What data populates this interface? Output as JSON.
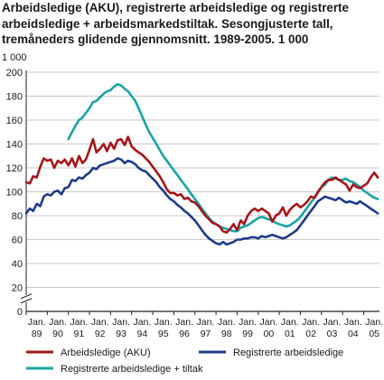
{
  "chart_data": {
    "type": "line",
    "title": "Arbeidsledige (AKU), registrerte arbeidsledige og registrerte arbeidsledige + arbeidsmarkedstiltak. Sesongjusterte tall, tremåneders glidende gjennomsnitt. 1989-2005. 1 000",
    "ylabel": "1 000",
    "xlabel": "",
    "ylim": [
      0,
      200
    ],
    "yticks": [
      0,
      20,
      40,
      60,
      80,
      100,
      120,
      140,
      160,
      180,
      200
    ],
    "y_axis_break": true,
    "grid": true,
    "legend_position": "bottom",
    "xlim": [
      1989.0,
      2005.75
    ],
    "x_tick_labels": [
      {
        "top": "Jan.",
        "bottom": "89"
      },
      {
        "top": "Jan.",
        "bottom": "90"
      },
      {
        "top": "Jan.",
        "bottom": "91"
      },
      {
        "top": "Jan.",
        "bottom": "92"
      },
      {
        "top": "Jan.",
        "bottom": "93"
      },
      {
        "top": "Jan.",
        "bottom": "94"
      },
      {
        "top": "Jan.",
        "bottom": "95"
      },
      {
        "top": "Jan.",
        "bottom": "96"
      },
      {
        "top": "Jan.",
        "bottom": "97"
      },
      {
        "top": "Jan.",
        "bottom": "98"
      },
      {
        "top": "Jan.",
        "bottom": "99"
      },
      {
        "top": "Jan.",
        "bottom": "00"
      },
      {
        "top": "Jan.",
        "bottom": "01"
      },
      {
        "top": "Jan.",
        "bottom": "02"
      },
      {
        "top": "Jan.",
        "bottom": "03"
      },
      {
        "top": "Jan.",
        "bottom": "04"
      },
      {
        "top": "Jan.",
        "bottom": "05"
      }
    ],
    "series": [
      {
        "name": "Arbeidsledige (AKU)",
        "color": "#a4161a",
        "x": [
          1989.0,
          1989.17,
          1989.33,
          1989.5,
          1989.67,
          1989.83,
          1990.0,
          1990.17,
          1990.33,
          1990.5,
          1990.67,
          1990.83,
          1991.0,
          1991.17,
          1991.33,
          1991.5,
          1991.67,
          1991.83,
          1992.0,
          1992.17,
          1992.33,
          1992.5,
          1992.67,
          1992.83,
          1993.0,
          1993.17,
          1993.33,
          1993.5,
          1993.67,
          1993.83,
          1994.0,
          1994.17,
          1994.33,
          1994.5,
          1994.67,
          1994.83,
          1995.0,
          1995.17,
          1995.33,
          1995.5,
          1995.67,
          1995.83,
          1996.0,
          1996.17,
          1996.33,
          1996.5,
          1996.67,
          1996.83,
          1997.0,
          1997.17,
          1997.33,
          1997.5,
          1997.67,
          1997.83,
          1998.0,
          1998.17,
          1998.33,
          1998.5,
          1998.67,
          1998.83,
          1999.0,
          1999.17,
          1999.33,
          1999.5,
          1999.67,
          1999.83,
          2000.0,
          2000.17,
          2000.33,
          2000.5,
          2000.67,
          2000.83,
          2001.0,
          2001.17,
          2001.33,
          2001.5,
          2001.67,
          2001.83,
          2002.0,
          2002.17,
          2002.33,
          2002.5,
          2002.67,
          2002.83,
          2003.0,
          2003.17,
          2003.33,
          2003.5,
          2003.67,
          2003.83,
          2004.0,
          2004.17,
          2004.33,
          2004.5,
          2004.67,
          2004.83,
          2005.0,
          2005.17,
          2005.33,
          2005.5,
          2005.67
        ],
        "values": [
          108,
          107,
          113,
          112,
          121,
          128,
          126,
          127,
          120,
          126,
          124,
          127,
          122,
          128,
          121,
          130,
          124,
          127,
          135,
          144,
          133,
          136,
          140,
          134,
          141,
          136,
          143,
          144,
          139,
          146,
          138,
          135,
          133,
          131,
          128,
          125,
          121,
          117,
          113,
          108,
          102,
          99,
          99,
          97,
          98,
          94,
          95,
          92,
          91,
          88,
          84,
          80,
          77,
          74,
          73,
          71,
          67,
          66,
          69,
          73,
          68,
          76,
          73,
          80,
          84,
          86,
          84,
          86,
          84,
          82,
          75,
          80,
          82,
          87,
          80,
          85,
          88,
          90,
          87,
          89,
          92,
          96,
          95,
          100,
          104,
          108,
          110,
          110,
          112,
          110,
          108,
          106,
          101,
          106,
          104,
          103,
          105,
          107,
          112,
          116,
          112
        ]
      },
      {
        "name": "Registrerte arbeidsledige",
        "color": "#1f3a8a",
        "x": [
          1989.0,
          1989.17,
          1989.33,
          1989.5,
          1989.67,
          1989.83,
          1990.0,
          1990.17,
          1990.33,
          1990.5,
          1990.67,
          1990.83,
          1991.0,
          1991.17,
          1991.33,
          1991.5,
          1991.67,
          1991.83,
          1992.0,
          1992.17,
          1992.33,
          1992.5,
          1992.67,
          1992.83,
          1993.0,
          1993.17,
          1993.33,
          1993.5,
          1993.67,
          1993.83,
          1994.0,
          1994.17,
          1994.33,
          1994.5,
          1994.67,
          1994.83,
          1995.0,
          1995.17,
          1995.33,
          1995.5,
          1995.67,
          1995.83,
          1996.0,
          1996.17,
          1996.33,
          1996.5,
          1996.67,
          1996.83,
          1997.0,
          1997.17,
          1997.33,
          1997.5,
          1997.67,
          1997.83,
          1998.0,
          1998.17,
          1998.33,
          1998.5,
          1998.67,
          1998.83,
          1999.0,
          1999.17,
          1999.33,
          1999.5,
          1999.67,
          1999.83,
          2000.0,
          2000.17,
          2000.33,
          2000.5,
          2000.67,
          2000.83,
          2001.0,
          2001.17,
          2001.33,
          2001.5,
          2001.67,
          2001.83,
          2002.0,
          2002.17,
          2002.33,
          2002.5,
          2002.67,
          2002.83,
          2003.0,
          2003.17,
          2003.33,
          2003.5,
          2003.67,
          2003.83,
          2004.0,
          2004.17,
          2004.33,
          2004.5,
          2004.67,
          2004.83,
          2005.0,
          2005.17,
          2005.33,
          2005.5,
          2005.67
        ],
        "values": [
          82,
          86,
          84,
          90,
          88,
          96,
          98,
          97,
          100,
          101,
          98,
          103,
          104,
          110,
          109,
          112,
          111,
          114,
          116,
          120,
          119,
          122,
          123,
          124,
          125,
          126,
          128,
          127,
          124,
          126,
          125,
          123,
          120,
          118,
          117,
          114,
          111,
          108,
          104,
          101,
          97,
          94,
          92,
          89,
          87,
          84,
          82,
          79,
          76,
          72,
          68,
          64,
          61,
          59,
          57,
          56,
          58,
          56,
          57,
          58,
          60,
          60,
          61,
          61,
          62,
          62,
          61,
          63,
          62,
          63,
          64,
          63,
          62,
          61,
          62,
          64,
          66,
          68,
          72,
          76,
          80,
          84,
          88,
          92,
          94,
          96,
          95,
          94,
          93,
          95,
          93,
          91,
          92,
          91,
          90,
          92,
          90,
          88,
          86,
          84,
          82
        ]
      },
      {
        "name": "Registrerte arbeidsledige + tiltak",
        "color": "#1aa3a3",
        "x": [
          1991.0,
          1991.17,
          1991.33,
          1991.5,
          1991.67,
          1991.83,
          1992.0,
          1992.17,
          1992.33,
          1992.5,
          1992.67,
          1992.83,
          1993.0,
          1993.17,
          1993.33,
          1993.5,
          1993.67,
          1993.83,
          1994.0,
          1994.17,
          1994.33,
          1994.5,
          1994.67,
          1994.83,
          1995.0,
          1995.17,
          1995.33,
          1995.5,
          1995.67,
          1995.83,
          1996.0,
          1996.17,
          1996.33,
          1996.5,
          1996.67,
          1996.83,
          1997.0,
          1997.17,
          1997.33,
          1997.5,
          1997.67,
          1997.83,
          1998.0,
          1998.17,
          1998.33,
          1998.5,
          1998.67,
          1998.83,
          1999.0,
          1999.17,
          1999.33,
          1999.5,
          1999.67,
          1999.83,
          2000.0,
          2000.17,
          2000.33,
          2000.5,
          2000.67,
          2000.83,
          2001.0,
          2001.17,
          2001.33,
          2001.5,
          2001.67,
          2001.83,
          2002.0,
          2002.17,
          2002.33,
          2002.5,
          2002.67,
          2002.83,
          2003.0,
          2003.17,
          2003.33,
          2003.5,
          2003.67,
          2003.83,
          2004.0,
          2004.17,
          2004.33,
          2004.5,
          2004.67,
          2004.83,
          2005.0,
          2005.17,
          2005.33,
          2005.5,
          2005.67
        ],
        "values": [
          144,
          150,
          155,
          160,
          162,
          166,
          170,
          175,
          176,
          179,
          182,
          184,
          185,
          188,
          190,
          189,
          186,
          184,
          180,
          176,
          170,
          163,
          156,
          150,
          145,
          140,
          135,
          130,
          126,
          122,
          118,
          114,
          110,
          106,
          102,
          98,
          94,
          90,
          86,
          82,
          78,
          75,
          73,
          71,
          70,
          69,
          68,
          67,
          67,
          70,
          71,
          72,
          74,
          76,
          78,
          79,
          78,
          77,
          76,
          74,
          73,
          72,
          71,
          72,
          74,
          76,
          79,
          83,
          87,
          91,
          95,
          99,
          104,
          106,
          110,
          112,
          111,
          110,
          110,
          111,
          109,
          108,
          106,
          104,
          101,
          99,
          97,
          95,
          94
        ]
      }
    ]
  }
}
